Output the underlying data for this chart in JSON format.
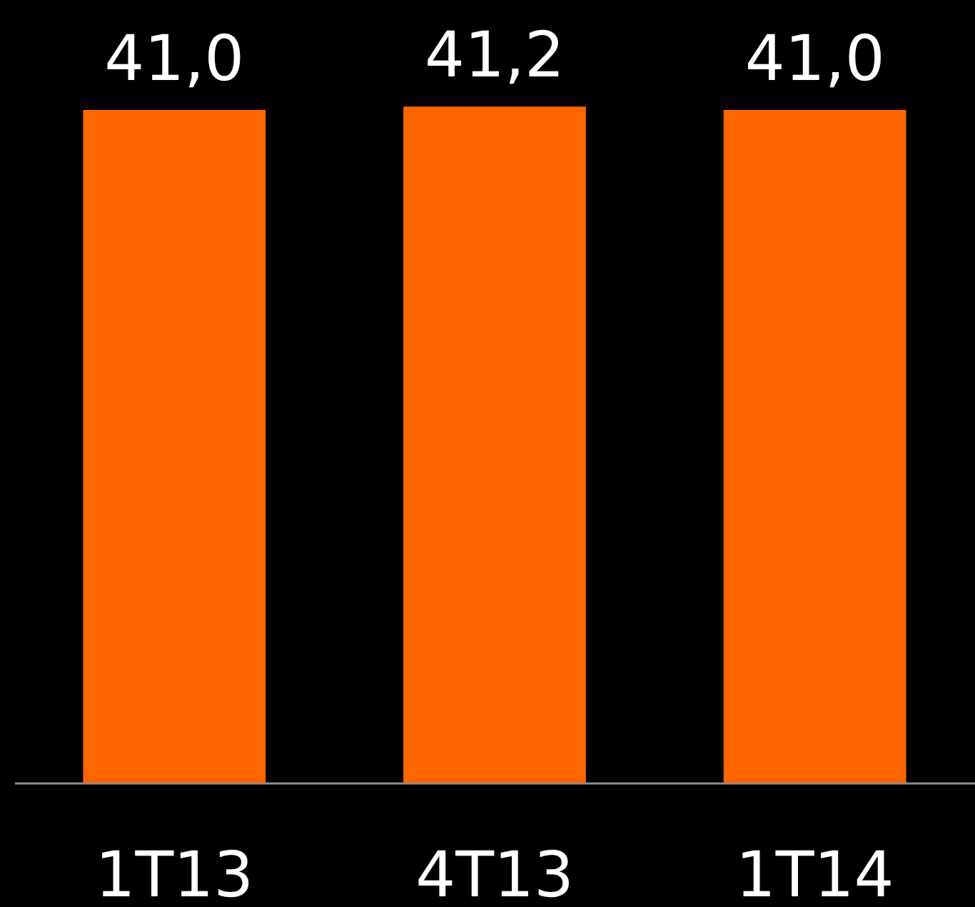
{
  "chart_data": {
    "type": "bar",
    "categories": [
      "1T13",
      "4T13",
      "1T14"
    ],
    "values": [
      41.0,
      41.2,
      41.0
    ],
    "value_labels": [
      "41,0",
      "41,2",
      "41,0"
    ],
    "color": "#ff6600",
    "ylim": [
      0,
      47.7
    ],
    "tick_labels": "x"
  }
}
